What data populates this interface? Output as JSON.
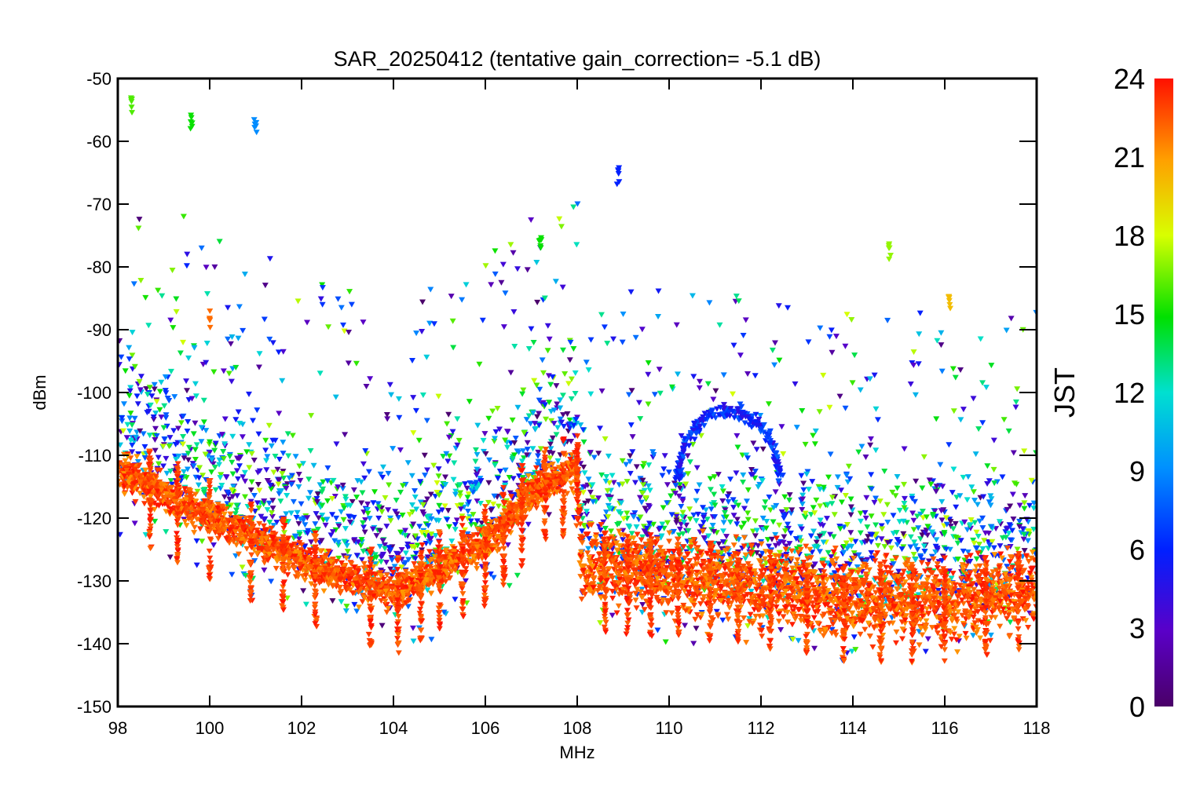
{
  "chart_data": {
    "type": "scatter",
    "title": "SAR_20250412 (tentative gain_correction= -5.1 dB)",
    "xlabel": "MHz",
    "ylabel": "dBm",
    "xlim": [
      98,
      118
    ],
    "ylim": [
      -150,
      -50
    ],
    "xticks": [
      98,
      100,
      102,
      104,
      106,
      108,
      110,
      112,
      114,
      116,
      118
    ],
    "yticks": [
      -50,
      -60,
      -70,
      -80,
      -90,
      -100,
      -110,
      -120,
      -130,
      -140,
      -150
    ],
    "colorbar": {
      "label": "JST",
      "range": [
        0,
        24
      ],
      "ticks": [
        0,
        3,
        6,
        9,
        12,
        15,
        18,
        21,
        24
      ],
      "colormap": "rainbow (purple-blue-cyan-green-yellow-orange-red)"
    },
    "description_series": {
      "noise_floor_dBm": [
        {
          "x": 98,
          "y": -112
        },
        {
          "x": 100,
          "y": -120
        },
        {
          "x": 102,
          "y": -127
        },
        {
          "x": 104,
          "y": -132
        },
        {
          "x": 106,
          "y": -124
        },
        {
          "x": 107,
          "y": -116
        },
        {
          "x": 108,
          "y": -112
        },
        {
          "x": 108.1,
          "y": -128
        },
        {
          "x": 110,
          "y": -129
        },
        {
          "x": 112,
          "y": -131
        },
        {
          "x": 114,
          "y": -133
        },
        {
          "x": 116,
          "y": -133
        },
        {
          "x": 118,
          "y": -131
        }
      ],
      "peaks_dBm": [
        {
          "x": 100.0,
          "y": -87,
          "jst": 22
        },
        {
          "x": 98.3,
          "y": -53,
          "jst": 16
        },
        {
          "x": 101.0,
          "y": -56,
          "jst": 9
        },
        {
          "x": 99.6,
          "y": -55,
          "jst": 15
        },
        {
          "x": 108.9,
          "y": -64,
          "jst": 6
        },
        {
          "x": 107.2,
          "y": -75,
          "jst": 15
        },
        {
          "x": 114.8,
          "y": -76,
          "jst": 17
        },
        {
          "x": 116.1,
          "y": -84,
          "jst": 20
        }
      ]
    }
  }
}
